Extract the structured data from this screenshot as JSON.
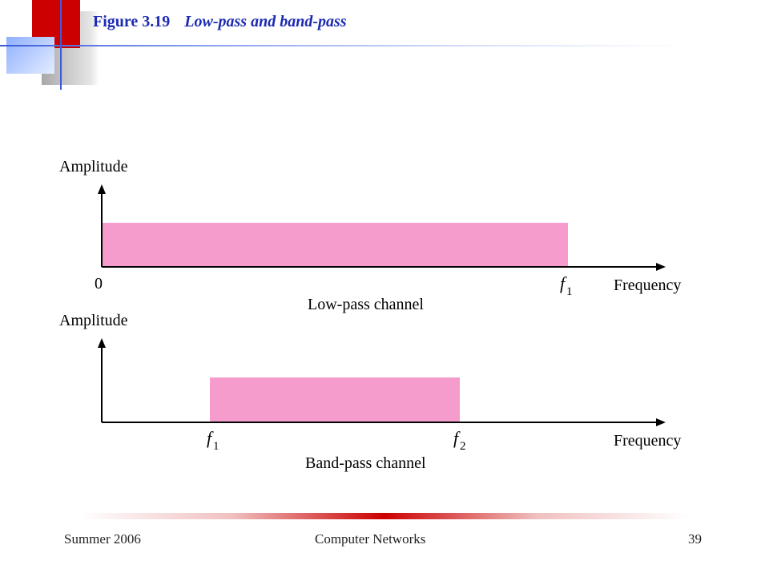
{
  "header": {
    "figure_number": "Figure 3.19",
    "figure_caption": "Low-pass and band-pass"
  },
  "diagram": {
    "fill_color": "#f59ccd",
    "low_pass": {
      "y_axis_label": "Amplitude",
      "x_axis_label": "Frequency",
      "origin_label": "0",
      "cutoff_label_letter": "f",
      "cutoff_label_sub": "1",
      "channel_label": "Low-pass channel"
    },
    "band_pass": {
      "y_axis_label": "Amplitude",
      "x_axis_label": "Frequency",
      "lower_label_letter": "f",
      "lower_label_sub": "1",
      "upper_label_letter": "f",
      "upper_label_sub": "2",
      "channel_label": "Band-pass channel"
    }
  },
  "footer": {
    "left": "Summer 2006",
    "center": "Computer Networks",
    "page_number": "39"
  }
}
